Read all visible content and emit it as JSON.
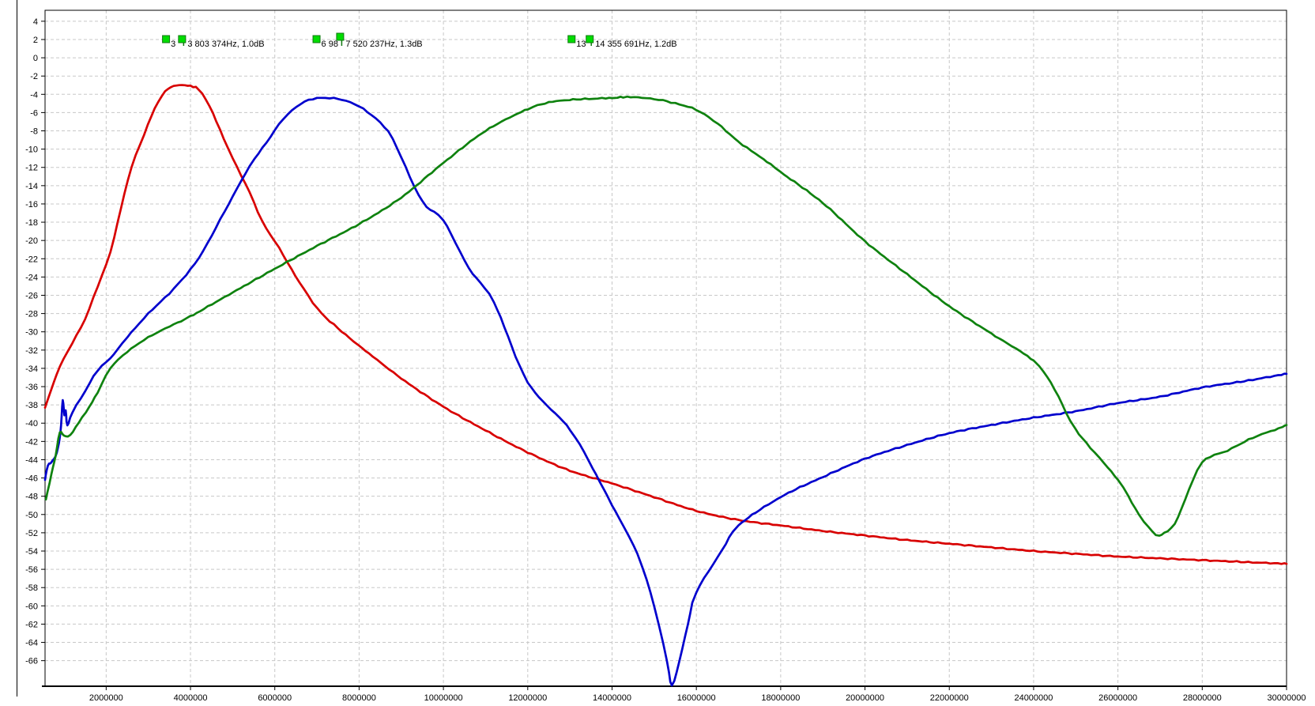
{
  "chart_data": {
    "type": "line",
    "title": "",
    "xlabel": "",
    "ylabel": "",
    "x_unit": "Hz",
    "y_unit": "dB",
    "x_min_mhz": 0.55,
    "x_max_mhz": 30,
    "y_top_db": 5.2,
    "y_bottom_db": -68.8,
    "grid": "dashed",
    "x_ticks_hz": [
      2000000,
      4000000,
      6000000,
      8000000,
      10000000,
      12000000,
      14000000,
      16000000,
      18000000,
      20000000,
      22000000,
      24000000,
      26000000,
      28000000,
      30000000
    ],
    "y_ticks_db": [
      4,
      2,
      0,
      -2,
      -4,
      -6,
      -8,
      -10,
      -12,
      -14,
      -16,
      -18,
      -20,
      -22,
      -24,
      -26,
      -28,
      -30,
      -32,
      -34,
      -36,
      -38,
      -40,
      -42,
      -44,
      -46,
      -48,
      -50,
      -52,
      -54,
      -56,
      -58,
      -60,
      -62,
      -64,
      -66
    ],
    "colors": {
      "red_trace": "#d80000",
      "blue_trace": "#0000cd",
      "green_trace": "#0f820f",
      "grid": "#c8c8c8",
      "axis": "#000000",
      "marker_fill": "#00dd00",
      "marker_border": "#117711",
      "text": "#000000"
    },
    "markers": [
      {
        "tag": "3",
        "label": "3 803 374Hz, 1.0dB",
        "square1_mhz": 3.42,
        "square2_mhz": 3.8,
        "sq2_dy": 0
      },
      {
        "tag": "6 98",
        "label": "7 520 237Hz, 1.3dB",
        "square1_mhz": 6.99,
        "square2_mhz": 7.55,
        "sq2_dy": -3
      },
      {
        "tag": "13",
        "label": "14 355 691Hz, 1.2dB",
        "square1_mhz": 13.04,
        "square2_mhz": 13.47,
        "sq2_dy": 0
      }
    ],
    "series": [
      {
        "name": "band-1-red",
        "color_key": "red_trace",
        "peak_label": "3 803 374Hz, 1.0dB",
        "points_mhz_db": [
          [
            0.55,
            -38.3
          ],
          [
            0.7,
            -36.3
          ],
          [
            0.9,
            -33.8
          ],
          [
            1.2,
            -31.2
          ],
          [
            1.5,
            -28.6
          ],
          [
            1.8,
            -25.0
          ],
          [
            2.1,
            -21.3
          ],
          [
            2.35,
            -16.5
          ],
          [
            2.6,
            -12.0
          ],
          [
            2.9,
            -8.4
          ],
          [
            3.15,
            -5.6
          ],
          [
            3.4,
            -3.7
          ],
          [
            3.6,
            -3.1
          ],
          [
            3.8,
            -3.0
          ],
          [
            4.0,
            -3.1
          ],
          [
            4.2,
            -3.5
          ],
          [
            4.45,
            -5.3
          ],
          [
            4.7,
            -7.9
          ],
          [
            5.0,
            -11.0
          ],
          [
            5.4,
            -14.7
          ],
          [
            5.7,
            -17.9
          ],
          [
            6.1,
            -20.8
          ],
          [
            6.4,
            -23.2
          ],
          [
            7.0,
            -27.4
          ],
          [
            7.5,
            -29.6
          ],
          [
            8.0,
            -31.5
          ],
          [
            9.0,
            -35.1
          ],
          [
            10.0,
            -38.2
          ],
          [
            11.0,
            -40.8
          ],
          [
            12.0,
            -43.2
          ],
          [
            13.0,
            -45.2
          ],
          [
            14.0,
            -46.6
          ],
          [
            15.0,
            -48.1
          ],
          [
            16.0,
            -49.6
          ],
          [
            17.0,
            -50.6
          ],
          [
            18.0,
            -51.2
          ],
          [
            19.0,
            -51.8
          ],
          [
            20.0,
            -52.3
          ],
          [
            21.0,
            -52.8
          ],
          [
            22.0,
            -53.2
          ],
          [
            23.0,
            -53.6
          ],
          [
            24.0,
            -54.0
          ],
          [
            25.0,
            -54.3
          ],
          [
            26.0,
            -54.6
          ],
          [
            27.0,
            -54.8
          ],
          [
            28.0,
            -55.0
          ],
          [
            29.0,
            -55.2
          ],
          [
            30.0,
            -55.4
          ]
        ]
      },
      {
        "name": "band-2-blue",
        "color_key": "blue_trace",
        "peak_label": "7 520 237Hz, 1.3dB",
        "points_mhz_db": [
          [
            0.55,
            -46.2
          ],
          [
            0.62,
            -44.6
          ],
          [
            0.7,
            -44.3
          ],
          [
            0.8,
            -43.6
          ],
          [
            0.88,
            -42.2
          ],
          [
            0.93,
            -40.2
          ],
          [
            0.97,
            -37.5
          ],
          [
            1.01,
            -39.2
          ],
          [
            1.04,
            -38.6
          ],
          [
            1.08,
            -40.2
          ],
          [
            1.2,
            -38.8
          ],
          [
            1.5,
            -36.5
          ],
          [
            1.8,
            -34.2
          ],
          [
            2.1,
            -32.9
          ],
          [
            2.5,
            -30.6
          ],
          [
            3.0,
            -28.0
          ],
          [
            3.6,
            -25.3
          ],
          [
            4.2,
            -21.9
          ],
          [
            4.8,
            -16.9
          ],
          [
            5.4,
            -11.9
          ],
          [
            5.8,
            -9.3
          ],
          [
            6.2,
            -6.7
          ],
          [
            6.6,
            -5.1
          ],
          [
            6.9,
            -4.5
          ],
          [
            7.2,
            -4.4
          ],
          [
            7.5,
            -4.5
          ],
          [
            7.8,
            -4.9
          ],
          [
            8.1,
            -5.6
          ],
          [
            8.5,
            -7.1
          ],
          [
            8.8,
            -8.9
          ],
          [
            9.3,
            -14.0
          ],
          [
            9.6,
            -16.3
          ],
          [
            10.0,
            -17.8
          ],
          [
            10.6,
            -23.0
          ],
          [
            11.2,
            -26.8
          ],
          [
            12.0,
            -35.5
          ],
          [
            13.0,
            -40.7
          ],
          [
            13.7,
            -46.3
          ],
          [
            14.0,
            -49.0
          ],
          [
            14.6,
            -54.3
          ],
          [
            15.0,
            -60.0
          ],
          [
            15.3,
            -66.0
          ],
          [
            15.42,
            -68.7
          ],
          [
            15.6,
            -66.0
          ],
          [
            15.8,
            -62.0
          ],
          [
            16.0,
            -58.5
          ],
          [
            16.6,
            -54.0
          ],
          [
            17.0,
            -51.2
          ],
          [
            18.0,
            -48.1
          ],
          [
            19.0,
            -45.9
          ],
          [
            20.0,
            -43.9
          ],
          [
            21.0,
            -42.4
          ],
          [
            22.0,
            -41.1
          ],
          [
            23.0,
            -40.2
          ],
          [
            24.0,
            -39.4
          ],
          [
            25.0,
            -38.7
          ],
          [
            26.0,
            -37.8
          ],
          [
            27.0,
            -37.1
          ],
          [
            28.0,
            -36.1
          ],
          [
            29.0,
            -35.4
          ],
          [
            30.0,
            -34.6
          ]
        ]
      },
      {
        "name": "band-3-green",
        "color_key": "green_trace",
        "peak_label": "14 355 691Hz, 1.2dB",
        "points_mhz_db": [
          [
            0.57,
            -48.4
          ],
          [
            0.7,
            -45.6
          ],
          [
            0.8,
            -43.6
          ],
          [
            0.9,
            -41.0
          ],
          [
            1.0,
            -41.4
          ],
          [
            1.15,
            -41.3
          ],
          [
            1.35,
            -39.9
          ],
          [
            1.6,
            -38.2
          ],
          [
            1.8,
            -36.6
          ],
          [
            2.1,
            -34.0
          ],
          [
            2.5,
            -32.2
          ],
          [
            3.0,
            -30.6
          ],
          [
            3.6,
            -29.2
          ],
          [
            4.0,
            -28.3
          ],
          [
            5.0,
            -25.7
          ],
          [
            6.0,
            -23.1
          ],
          [
            7.0,
            -20.6
          ],
          [
            8.0,
            -18.2
          ],
          [
            9.0,
            -15.3
          ],
          [
            10.0,
            -11.5
          ],
          [
            11.0,
            -8.0
          ],
          [
            12.0,
            -5.6
          ],
          [
            12.5,
            -4.9
          ],
          [
            13.0,
            -4.6
          ],
          [
            14.0,
            -4.4
          ],
          [
            14.36,
            -4.3
          ],
          [
            15.0,
            -4.5
          ],
          [
            15.5,
            -5.0
          ],
          [
            16.0,
            -5.7
          ],
          [
            16.5,
            -7.2
          ],
          [
            17.0,
            -9.2
          ],
          [
            17.5,
            -10.8
          ],
          [
            18.0,
            -12.5
          ],
          [
            19.0,
            -15.9
          ],
          [
            20.0,
            -20.1
          ],
          [
            21.0,
            -23.7
          ],
          [
            22.0,
            -27.2
          ],
          [
            23.0,
            -30.2
          ],
          [
            24.0,
            -33.2
          ],
          [
            24.5,
            -36.3
          ],
          [
            25.0,
            -40.7
          ],
          [
            26.0,
            -46.2
          ],
          [
            26.5,
            -50.0
          ],
          [
            26.9,
            -52.2
          ],
          [
            27.1,
            -52.0
          ],
          [
            27.35,
            -51.0
          ],
          [
            27.6,
            -48.3
          ],
          [
            28.0,
            -44.3
          ],
          [
            28.6,
            -43.0
          ],
          [
            29.2,
            -41.6
          ],
          [
            29.8,
            -40.6
          ],
          [
            30.0,
            -40.2
          ]
        ]
      }
    ]
  }
}
